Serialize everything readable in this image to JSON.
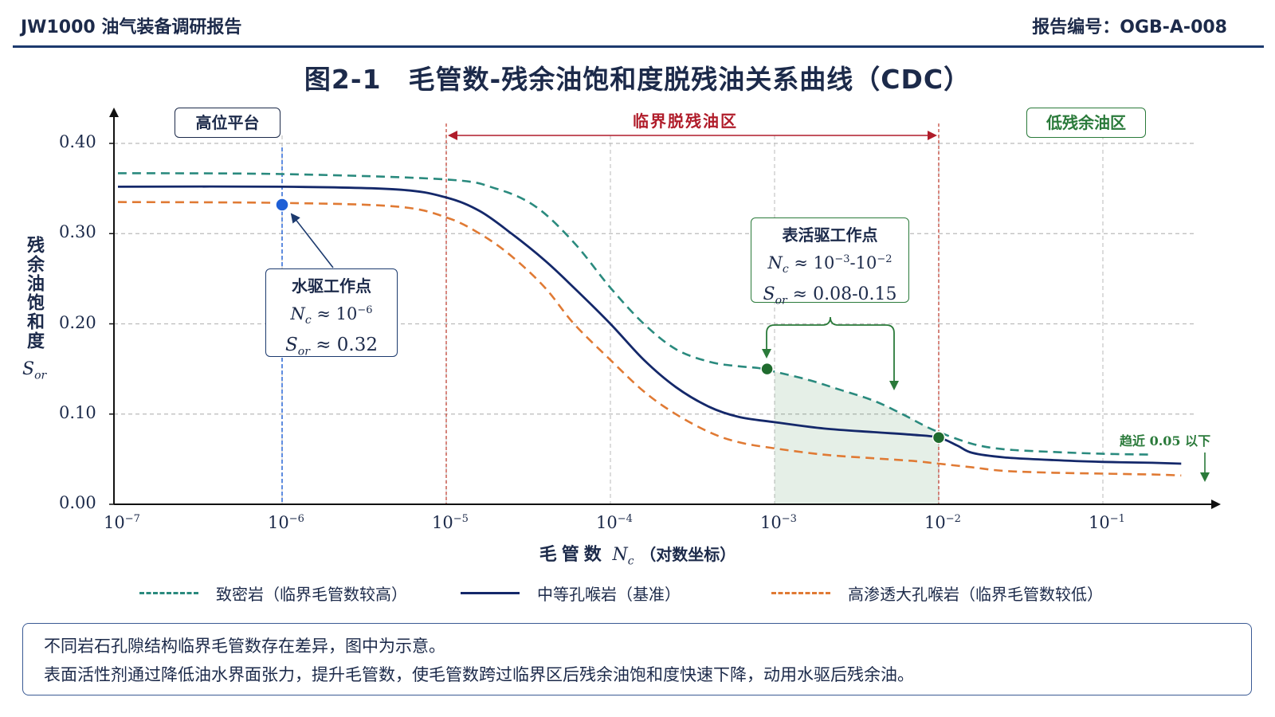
{
  "header": {
    "left": "JW1000 油气装备调研报告",
    "right": "报告编号：OGB-A-008"
  },
  "chart_data": {
    "type": "line",
    "title": "图2-1　毛管数-残余油饱和度脱残油关系曲线（CDC）",
    "xlabel": "毛管数",
    "xlabel_symbol": "Nc",
    "xlabel_suffix": "（对数坐标）",
    "ylabel": "残余油饱和度",
    "ylabel_symbol": "Sor",
    "x_scale": "log",
    "xlim": [
      1e-07,
      0.3
    ],
    "ylim": [
      0,
      0.42
    ],
    "x_ticks": [
      {
        "base": "10",
        "exp": "−7"
      },
      {
        "base": "10",
        "exp": "−6"
      },
      {
        "base": "10",
        "exp": "−5"
      },
      {
        "base": "10",
        "exp": "−4"
      },
      {
        "base": "10",
        "exp": "−3"
      },
      {
        "base": "10",
        "exp": "−2"
      },
      {
        "base": "10",
        "exp": "−1"
      }
    ],
    "y_ticks": [
      "0.00",
      "0.10",
      "0.20",
      "0.30",
      "0.40"
    ],
    "grid": true,
    "legend_position": "bottom",
    "series": [
      {
        "name": "致密岩（临界毛管数较高）",
        "style": "dashed",
        "color": "#2a8a7e",
        "points": [
          [
            1e-07,
            0.367
          ],
          [
            1e-06,
            0.366
          ],
          [
            1e-05,
            0.36
          ],
          [
            2e-05,
            0.35
          ],
          [
            3.5e-05,
            0.33
          ],
          [
            6e-05,
            0.29
          ],
          [
            0.0001,
            0.24
          ],
          [
            0.00016,
            0.2
          ],
          [
            0.00025,
            0.172
          ],
          [
            0.0004,
            0.158
          ],
          [
            0.0006,
            0.153
          ],
          [
            0.0008,
            0.151
          ],
          [
            0.001,
            0.147
          ],
          [
            0.0016,
            0.138
          ],
          [
            0.0025,
            0.127
          ],
          [
            0.004,
            0.115
          ],
          [
            0.006,
            0.1
          ],
          [
            0.008,
            0.088
          ],
          [
            0.01,
            0.08
          ],
          [
            0.016,
            0.067
          ],
          [
            0.025,
            0.061
          ],
          [
            0.05,
            0.058
          ],
          [
            0.1,
            0.056
          ],
          [
            0.2,
            0.055
          ]
        ]
      },
      {
        "name": "中等孔喉岩（基准）",
        "style": "solid",
        "color": "#14286a",
        "points": [
          [
            1e-07,
            0.352
          ],
          [
            1e-06,
            0.352
          ],
          [
            5e-06,
            0.349
          ],
          [
            1e-05,
            0.34
          ],
          [
            1.6e-05,
            0.325
          ],
          [
            2.5e-05,
            0.3
          ],
          [
            4e-05,
            0.27
          ],
          [
            6e-05,
            0.24
          ],
          [
            0.0001,
            0.2
          ],
          [
            0.00016,
            0.16
          ],
          [
            0.00025,
            0.13
          ],
          [
            0.0004,
            0.108
          ],
          [
            0.0006,
            0.097
          ],
          [
            0.001,
            0.091
          ],
          [
            0.002,
            0.084
          ],
          [
            0.004,
            0.08
          ],
          [
            0.007,
            0.077
          ],
          [
            0.01,
            0.074
          ],
          [
            0.013,
            0.065
          ],
          [
            0.016,
            0.057
          ],
          [
            0.025,
            0.052
          ],
          [
            0.05,
            0.049
          ],
          [
            0.1,
            0.047
          ],
          [
            0.2,
            0.046
          ],
          [
            0.3,
            0.045
          ]
        ]
      },
      {
        "name": "高渗透大孔喉岩（临界毛管数较低）",
        "style": "dashed",
        "color": "#e07a34",
        "points": [
          [
            1e-07,
            0.335
          ],
          [
            1e-06,
            0.334
          ],
          [
            5e-06,
            0.33
          ],
          [
            1e-05,
            0.318
          ],
          [
            1.6e-05,
            0.3
          ],
          [
            2.5e-05,
            0.275
          ],
          [
            4e-05,
            0.24
          ],
          [
            6e-05,
            0.2
          ],
          [
            0.0001,
            0.16
          ],
          [
            0.00016,
            0.125
          ],
          [
            0.00025,
            0.1
          ],
          [
            0.0004,
            0.08
          ],
          [
            0.0006,
            0.069
          ],
          [
            0.001,
            0.062
          ],
          [
            0.002,
            0.055
          ],
          [
            0.004,
            0.051
          ],
          [
            0.007,
            0.048
          ],
          [
            0.01,
            0.045
          ],
          [
            0.016,
            0.041
          ],
          [
            0.025,
            0.037
          ],
          [
            0.05,
            0.035
          ],
          [
            0.1,
            0.034
          ],
          [
            0.2,
            0.033
          ],
          [
            0.3,
            0.032
          ]
        ]
      }
    ],
    "regions": [
      {
        "label": "高位平台",
        "color": "#1c2a4a"
      },
      {
        "label": "临界脱残油区",
        "x_range": [
          1e-05,
          0.01
        ],
        "color": "#b01c2a"
      },
      {
        "label": "低残余油区",
        "color": "#2a7a3a"
      }
    ],
    "shaded_range": [
      0.001,
      0.01
    ],
    "points_of_interest": [
      {
        "x": 1e-06,
        "y": 0.332,
        "color": "#1e5fd6"
      },
      {
        "x": 0.0009,
        "y": 0.15,
        "color": "#1f6b2e"
      },
      {
        "x": 0.01,
        "y": 0.074,
        "color": "#1f6b2e"
      }
    ],
    "annotations": {
      "waterflood": {
        "title": "水驱工作点",
        "nc_sym": "N",
        "nc_sub": "c",
        "nc_approx": " ≈ 10",
        "nc_exp": "−6",
        "sor_sym": "S",
        "sor_sub": "or",
        "sor_text": " ≈ 0.32"
      },
      "surfactant": {
        "title": "表活驱工作点",
        "nc_sym": "N",
        "nc_sub": "c",
        "nc_approx": " ≈ 10",
        "nc_exp1": "−3",
        "nc_dash": "-10",
        "nc_exp2": "−2",
        "sor_sym": "S",
        "sor_sub": "or",
        "sor_text": " ≈ 0.08-0.15"
      },
      "approach": "趋近 0.05 以下"
    }
  },
  "note": {
    "line1": "不同岩石孔隙结构临界毛管数存在差异，图中为示意。",
    "line2": "表面活性剂通过降低油水界面张力，提升毛管数，使毛管数跨过临界区后残余油饱和度快速下降，动用水驱后残余油。"
  }
}
